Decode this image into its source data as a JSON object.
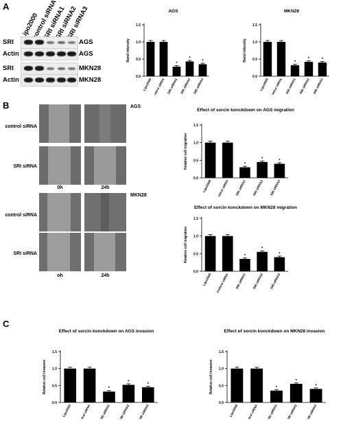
{
  "panels": {
    "a": "A",
    "b": "B",
    "c": "C"
  },
  "western_blot": {
    "lanes": [
      "Lipo2000",
      "control siRNA",
      "SRI siRNA1",
      "SRI siRNA2",
      "SRI siRNA3"
    ],
    "rows": [
      {
        "left": "SRI",
        "right": "AGS"
      },
      {
        "left": "Actin",
        "right": "AGS"
      },
      {
        "left": "SRI",
        "right": "MKN28"
      },
      {
        "left": "Actin",
        "right": "MKN28"
      }
    ]
  },
  "migration_images": {
    "rows": [
      "control siRNA",
      "SRI siRNA",
      "control siRNA",
      "SRI siRNA"
    ],
    "cells": [
      "AGS",
      "MKN28"
    ],
    "times_top": [
      "0h",
      "24h"
    ],
    "times_bottom": [
      "oh",
      "24h"
    ]
  },
  "chart_data": [
    {
      "type": "bar",
      "title": "AGS",
      "xlabel": "",
      "ylabel": "Band intensity",
      "categories": [
        "Lipo2000",
        "Control siRNA",
        "SRI siRNA1",
        "SRI siRNA2",
        "SRI siRNA3"
      ],
      "values": [
        1.0,
        1.0,
        0.28,
        0.43,
        0.35
      ],
      "errors": [
        0.04,
        0.04,
        0.03,
        0.03,
        0.03
      ],
      "significant": [
        false,
        false,
        true,
        true,
        true
      ],
      "ylim": [
        0,
        1.5
      ],
      "yticks": [
        "0.0",
        "0.5",
        "1.0",
        "1.5"
      ],
      "grid": false
    },
    {
      "type": "bar",
      "title": "MKN28",
      "xlabel": "",
      "ylabel": "Band intensity",
      "categories": [
        "Lipo2000",
        "Control siRNA",
        "SRI siRNA1",
        "SRI siRNA2",
        "SRI siRNA3"
      ],
      "values": [
        1.0,
        1.0,
        0.32,
        0.42,
        0.4
      ],
      "errors": [
        0.04,
        0.04,
        0.03,
        0.03,
        0.03
      ],
      "significant": [
        false,
        false,
        true,
        true,
        true
      ],
      "ylim": [
        0,
        1.5
      ],
      "yticks": [
        "0.0",
        "0.5",
        "1.0",
        "1.5"
      ],
      "grid": false
    },
    {
      "type": "bar",
      "title": "Effect of sorcin konckdown on AGS migration",
      "xlabel": "",
      "ylabel": "Relative cell migration",
      "categories": [
        "Lipo2000",
        "Control siRNA",
        "SRI siRNA1",
        "SRI siRNA2",
        "SRI siRNA3"
      ],
      "values": [
        1.0,
        1.0,
        0.3,
        0.45,
        0.4
      ],
      "errors": [
        0.04,
        0.04,
        0.03,
        0.03,
        0.03
      ],
      "significant": [
        false,
        false,
        true,
        true,
        true
      ],
      "ylim": [
        0,
        1.5
      ],
      "yticks": [
        "0.0",
        "0.5",
        "1.0",
        "1.5"
      ],
      "grid": false
    },
    {
      "type": "bar",
      "title": "Effect of sorcin konckdown on MKN28 migration",
      "xlabel": "",
      "ylabel": "Relative cell migration",
      "categories": [
        "Lipo2000",
        "Control siRNA",
        "SRI siRNA1",
        "SRI siRNA2",
        "SRI siRNA3"
      ],
      "values": [
        1.0,
        1.0,
        0.35,
        0.55,
        0.4
      ],
      "errors": [
        0.04,
        0.04,
        0.03,
        0.03,
        0.03
      ],
      "significant": [
        false,
        false,
        true,
        true,
        true
      ],
      "ylim": [
        0,
        1.5
      ],
      "yticks": [
        "0.0",
        "0.5",
        "1.0",
        "1.5"
      ],
      "grid": false
    },
    {
      "type": "bar",
      "title": "Effect of sorcin konckdown on AGS invasion",
      "xlabel": "",
      "ylabel": "Relative cell invasion",
      "categories": [
        "Lipo2000",
        "Control siRNA",
        "SRI siRNA1",
        "SRI siRNA2",
        "SRI siRNA3"
      ],
      "values": [
        1.0,
        1.0,
        0.32,
        0.52,
        0.45
      ],
      "errors": [
        0.04,
        0.04,
        0.03,
        0.03,
        0.03
      ],
      "significant": [
        false,
        false,
        true,
        true,
        true
      ],
      "ylim": [
        0,
        1.5
      ],
      "yticks": [
        "0.0",
        "0.5",
        "1.0",
        "1.5"
      ],
      "grid": false
    },
    {
      "type": "bar",
      "title": "Effect of sorcin konckdown on MKN28 invasion",
      "xlabel": "",
      "ylabel": "Relative cell invasion",
      "categories": [
        "Lipo2000",
        "Control siRNA",
        "SRI siRNA1",
        "SRI siRNA2",
        "SRI siRNA3"
      ],
      "values": [
        1.0,
        1.0,
        0.35,
        0.55,
        0.4
      ],
      "errors": [
        0.04,
        0.04,
        0.03,
        0.03,
        0.03
      ],
      "significant": [
        false,
        false,
        true,
        true,
        true
      ],
      "ylim": [
        0,
        1.5
      ],
      "yticks": [
        "0.0",
        "0.5",
        "1.0",
        "1.5"
      ],
      "grid": false
    }
  ]
}
